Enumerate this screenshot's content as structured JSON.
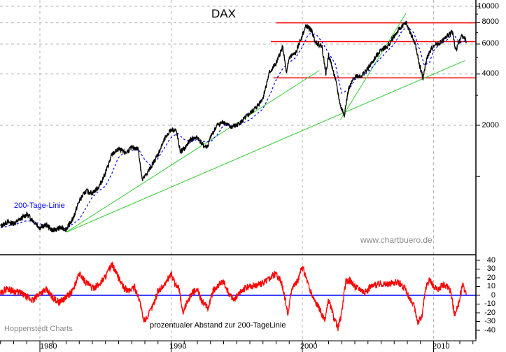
{
  "chart_data": [
    {
      "type": "line",
      "title": "DAX",
      "yscale": "log",
      "ylim": [
        400,
        10000
      ],
      "y_ticks": [
        2000,
        4000,
        6000,
        8000,
        10000
      ],
      "x_ticks": [
        1980,
        1990,
        2000,
        2010
      ],
      "xlim": [
        1977,
        2013
      ],
      "grid": true,
      "series": [
        {
          "name": "DAX",
          "color": "#000000",
          "x": [
            1977.0,
            1977.5,
            1978.0,
            1978.5,
            1979.0,
            1979.5,
            1980.0,
            1980.5,
            1981.0,
            1981.5,
            1982.0,
            1982.5,
            1983.0,
            1983.5,
            1984.0,
            1984.5,
            1985.0,
            1985.5,
            1986.0,
            1986.5,
            1987.0,
            1987.5,
            1987.8,
            1988.0,
            1988.5,
            1989.0,
            1989.5,
            1990.0,
            1990.4,
            1990.7,
            1991.0,
            1991.5,
            1992.0,
            1992.5,
            1992.8,
            1993.0,
            1993.5,
            1994.0,
            1994.5,
            1995.0,
            1995.5,
            1996.0,
            1996.5,
            1997.0,
            1997.5,
            1998.0,
            1998.5,
            1998.8,
            1999.0,
            1999.5,
            2000.0,
            2000.3,
            2000.7,
            2001.0,
            2001.5,
            2001.8,
            2002.0,
            2002.5,
            2002.9,
            2003.2,
            2003.5,
            2004.0,
            2004.5,
            2005.0,
            2005.5,
            2006.0,
            2006.5,
            2007.0,
            2007.5,
            2007.9,
            2008.3,
            2008.6,
            2008.9,
            2009.2,
            2009.5,
            2010.0,
            2010.5,
            2011.0,
            2011.4,
            2011.7,
            2011.9,
            2012.2,
            2012.5
          ],
          "values": [
            510,
            540,
            530,
            560,
            600,
            550,
            500,
            520,
            480,
            500,
            490,
            560,
            720,
            820,
            800,
            870,
            1050,
            1350,
            1450,
            1370,
            1480,
            1450,
            950,
            1000,
            1150,
            1350,
            1650,
            1900,
            1850,
            1400,
            1450,
            1650,
            1700,
            1500,
            1500,
            1700,
            2000,
            2100,
            1950,
            2000,
            2150,
            2350,
            2550,
            2900,
            4100,
            4600,
            5800,
            4000,
            5000,
            5300,
            6800,
            7700,
            7200,
            6200,
            5800,
            4000,
            5200,
            3800,
            2600,
            2300,
            3200,
            3900,
            3900,
            4300,
            4900,
            5600,
            5800,
            6700,
            7500,
            8000,
            6800,
            6000,
            4600,
            3800,
            5000,
            5900,
            6100,
            6600,
            7200,
            5500,
            6100,
            6800,
            6200
          ]
        },
        {
          "name": "200-Tage-Linie",
          "color": "#0000ff",
          "style": "dashed",
          "x": [
            1977.0,
            1978.0,
            1979.0,
            1980.0,
            1981.0,
            1982.0,
            1983.0,
            1983.5,
            1984.0,
            1985.0,
            1985.5,
            1986.0,
            1986.5,
            1987.0,
            1987.5,
            1988.0,
            1988.5,
            1989.0,
            1989.5,
            1990.0,
            1990.5,
            1991.0,
            1991.5,
            1992.0,
            1992.5,
            1993.0,
            1993.5,
            1994.0,
            1995.0,
            1996.0,
            1997.0,
            1997.5,
            1998.0,
            1998.5,
            1999.0,
            1999.5,
            2000.0,
            2000.5,
            2001.0,
            2001.5,
            2002.0,
            2002.5,
            2003.0,
            2003.5,
            2004.0,
            2005.0,
            2006.0,
            2007.0,
            2007.5,
            2008.0,
            2008.5,
            2009.0,
            2009.3,
            2009.7,
            2010.0,
            2010.5,
            2011.0,
            2011.5,
            2012.0,
            2012.5
          ],
          "values": [
            500,
            520,
            550,
            530,
            490,
            495,
            560,
            650,
            760,
            880,
            1050,
            1300,
            1400,
            1420,
            1450,
            1250,
            1150,
            1280,
            1480,
            1700,
            1800,
            1650,
            1600,
            1650,
            1600,
            1600,
            1750,
            2000,
            1980,
            2150,
            2500,
            3000,
            3700,
            4300,
            4700,
            5000,
            5800,
            6900,
            6900,
            6200,
            5300,
            4600,
            3100,
            3200,
            3700,
            4100,
            5000,
            6000,
            7000,
            7600,
            7000,
            5400,
            4500,
            4700,
            5500,
            6000,
            6300,
            6900,
            6100,
            6300
          ]
        },
        {
          "name": "Resistance 8000",
          "color": "#ff0000",
          "type": "hline",
          "value": 8000,
          "x_range": [
            1998.0,
            2013.0
          ]
        },
        {
          "name": "Resistance 6200",
          "color": "#ff0000",
          "type": "hline",
          "value": 6200,
          "x_range": [
            1997.6,
            2013.0
          ]
        },
        {
          "name": "Support 3800",
          "color": "#ff0000",
          "type": "hline",
          "value": 3800,
          "x_range": [
            1997.8,
            2013.0
          ]
        },
        {
          "name": "Trendline 1",
          "color": "#00cc00",
          "type": "segment",
          "x": [
            1982.0,
            2001.3
          ],
          "values": [
            470,
            4200
          ]
        },
        {
          "name": "Trendline 2",
          "color": "#00cc00",
          "type": "segment",
          "x": [
            1982.0,
            2012.4
          ],
          "values": [
            470,
            4800
          ]
        },
        {
          "name": "Trendline 3",
          "color": "#00cc00",
          "type": "segment",
          "x": [
            2002.9,
            2007.9
          ],
          "values": [
            2150,
            9100
          ]
        }
      ],
      "annotations": [
        "200-Tage-Linie",
        "www.chartbuero.de"
      ]
    },
    {
      "type": "line",
      "title": "prozentualer Abstand zur 200-TageLinie",
      "ylim": [
        -45,
        45
      ],
      "y_ticks": [
        40,
        30,
        20,
        10,
        0,
        -10,
        -20,
        -30,
        -40
      ],
      "x_ticks": [
        1980,
        1990,
        2000,
        2010
      ],
      "series": [
        {
          "name": "Abstand zur 200-Tage-Linie (%)",
          "color": "#ff0000",
          "x": [
            1977.0,
            1977.5,
            1978.0,
            1978.5,
            1979.0,
            1979.5,
            1980.0,
            1980.5,
            1981.0,
            1981.5,
            1982.0,
            1982.5,
            1983.0,
            1983.5,
            1984.0,
            1984.5,
            1985.0,
            1985.5,
            1986.0,
            1986.4,
            1986.8,
            1987.2,
            1987.6,
            1987.9,
            1988.3,
            1988.7,
            1989.0,
            1989.5,
            1990.0,
            1990.3,
            1990.6,
            1990.9,
            1991.2,
            1991.6,
            1992.0,
            1992.4,
            1992.8,
            1993.2,
            1993.6,
            1994.0,
            1994.4,
            1994.8,
            1995.2,
            1995.6,
            1996.0,
            1996.5,
            1997.0,
            1997.5,
            1998.0,
            1998.4,
            1998.7,
            1998.9,
            1999.2,
            1999.6,
            2000.0,
            2000.3,
            2000.6,
            2000.9,
            2001.3,
            2001.7,
            2002.0,
            2002.4,
            2002.7,
            2003.0,
            2003.3,
            2003.6,
            2004.0,
            2004.4,
            2004.8,
            2005.2,
            2005.6,
            2006.0,
            2006.5,
            2007.0,
            2007.4,
            2007.8,
            2008.2,
            2008.5,
            2008.8,
            2009.1,
            2009.4,
            2009.7,
            2010.0,
            2010.3,
            2010.7,
            2011.0,
            2011.3,
            2011.6,
            2011.9,
            2012.2,
            2012.5
          ],
          "values": [
            2,
            8,
            5,
            3,
            -2,
            -6,
            3,
            6,
            -3,
            -8,
            -2,
            5,
            25,
            15,
            8,
            12,
            22,
            35,
            20,
            8,
            5,
            10,
            -5,
            -30,
            -22,
            -8,
            5,
            12,
            25,
            12,
            8,
            -20,
            -8,
            3,
            6,
            -8,
            -15,
            5,
            12,
            15,
            2,
            -5,
            3,
            8,
            10,
            12,
            14,
            20,
            25,
            15,
            -5,
            -22,
            10,
            15,
            32,
            20,
            5,
            -5,
            -15,
            -30,
            -5,
            -25,
            -38,
            -20,
            15,
            18,
            10,
            8,
            3,
            10,
            12,
            14,
            12,
            15,
            14,
            8,
            -5,
            -12,
            -30,
            -25,
            8,
            18,
            10,
            6,
            12,
            10,
            5,
            -22,
            -10,
            12,
            2
          ]
        },
        {
          "name": "Nulllinie",
          "color": "#0000ff",
          "type": "hline",
          "value": 0
        }
      ]
    }
  ],
  "header": {
    "title": "DAX"
  },
  "main_axis": {
    "y_labels": [
      "10000",
      "8000",
      "6000",
      "4000",
      "2000"
    ]
  },
  "oscillator_axis": {
    "y_labels": [
      "40",
      "30",
      "20",
      "10",
      "0",
      "-10",
      "-20",
      "-30",
      "-40"
    ],
    "title": "prozentualer Abstand zur 200-TageLinie"
  },
  "x_axis": {
    "labels": [
      "1980",
      "1990",
      "2000",
      "2010"
    ]
  },
  "legend": {
    "ma_label": "200-Tage-Linie"
  },
  "footer": {
    "watermark": "www.chartbuero.de",
    "source": "Hoppenstedt Charts"
  },
  "colors": {
    "price": "#000000",
    "moving_average": "#0000ff",
    "support_resistance": "#ff0000",
    "trendline": "#33cc33",
    "oscillator": "#ff0000",
    "zero_line": "#0000ff",
    "grid": "#b4b4b4",
    "text_secondary": "#8c8c8c"
  }
}
